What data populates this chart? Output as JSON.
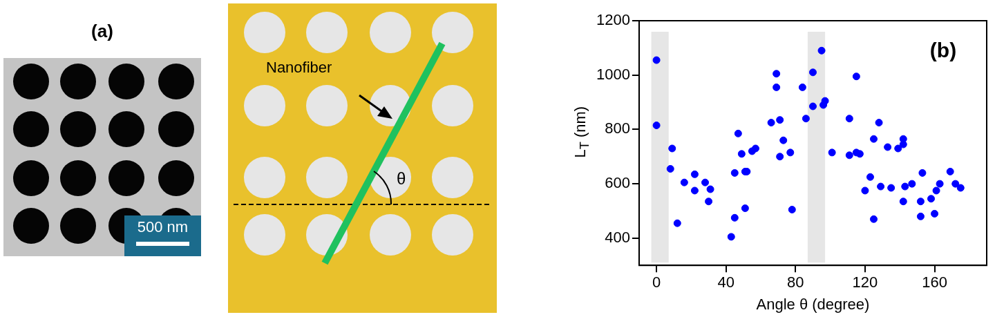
{
  "chart_data": [
    {
      "type": "other",
      "title": "(a)",
      "annotations": [
        "500 nm",
        "Nanofiber",
        "θ"
      ]
    },
    {
      "type": "scatter",
      "title": "(b)",
      "xlabel": "Angle θ (degree)",
      "ylabel": "L$_{T}$ (nm)",
      "x": [
        0,
        0,
        9,
        8,
        12,
        16,
        22,
        22,
        28,
        31,
        30,
        43,
        45,
        45,
        47,
        49,
        51,
        51,
        52,
        55,
        57,
        66,
        69,
        69,
        71,
        73,
        71,
        77,
        78,
        84,
        86,
        90,
        90,
        95,
        96,
        97,
        101,
        111,
        111,
        115,
        115,
        117,
        120,
        123,
        125,
        125,
        128,
        129,
        133,
        135,
        139,
        142,
        142,
        142,
        143,
        147,
        153,
        152,
        152,
        158,
        160,
        161,
        163,
        169,
        172,
        175
      ],
      "values": [
        1055,
        815,
        730,
        655,
        455,
        605,
        635,
        575,
        605,
        580,
        535,
        405,
        475,
        640,
        785,
        710,
        510,
        645,
        645,
        720,
        730,
        825,
        1005,
        955,
        835,
        760,
        700,
        715,
        505,
        955,
        840,
        1010,
        885,
        1090,
        890,
        905,
        715,
        840,
        705,
        995,
        715,
        710,
        575,
        625,
        470,
        765,
        825,
        590,
        735,
        585,
        730,
        765,
        745,
        535,
        590,
        600,
        640,
        535,
        480,
        545,
        490,
        575,
        600,
        645,
        600,
        585
      ],
      "color": "#0000ff",
      "marker": "circle",
      "xlim": [
        -10,
        190
      ],
      "xticks": [
        0,
        40,
        80,
        120,
        160
      ],
      "ylim": [
        300,
        1200
      ],
      "yticks": [
        400,
        600,
        800,
        1000,
        1200
      ],
      "bands": [
        {
          "axis": "x",
          "from": -3,
          "to": 7,
          "color": "#e6e6e6"
        },
        {
          "axis": "x",
          "from": 87,
          "to": 97,
          "color": "#e6e6e6"
        }
      ],
      "grid": false,
      "legend": false
    }
  ]
}
